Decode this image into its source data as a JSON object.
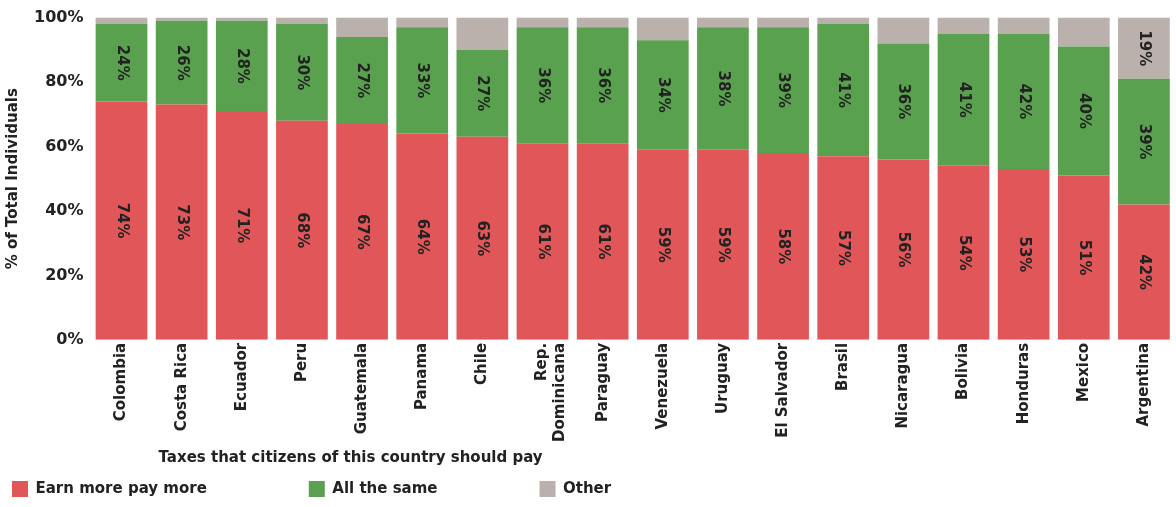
{
  "chart_data": {
    "type": "bar",
    "stacked": true,
    "ylabel": "% of Total Individuals",
    "legend_title": "Taxes that citizens of this country should pay",
    "legend": "bottom left",
    "grid": false,
    "categories": [
      "Colombia",
      "Costa Rica",
      "Ecuador",
      "Peru",
      "Guatemala",
      "Panama",
      "Chile",
      "Rep.\nDominicana",
      "Paraguay",
      "Venezuela",
      "Uruguay",
      "El Salvador",
      "Brasil",
      "Nicaragua",
      "Bolivia",
      "Honduras",
      "Mexico",
      "Argentina"
    ],
    "ylim": [
      0,
      100
    ],
    "yticks": [
      {
        "value": 0,
        "label": "0%"
      },
      {
        "value": 20,
        "label": "20%"
      },
      {
        "value": 40,
        "label": "40%"
      },
      {
        "value": 60,
        "label": "60%"
      },
      {
        "value": 80,
        "label": "80%"
      },
      {
        "value": 100,
        "label": "100%"
      }
    ],
    "series": [
      {
        "name": "Earn more pay more",
        "color": "#e15759",
        "values": [
          74,
          73,
          71,
          68,
          67,
          64,
          63,
          61,
          61,
          59,
          59,
          58,
          57,
          56,
          54,
          53,
          51,
          42
        ],
        "value_labels": [
          "74%",
          "73%",
          "71%",
          "68%",
          "67%",
          "64%",
          "63%",
          "61%",
          "61%",
          "59%",
          "59%",
          "58%",
          "57%",
          "56%",
          "54%",
          "53%",
          "51%",
          "42%"
        ]
      },
      {
        "name": "All the same",
        "color": "#59a14f",
        "values": [
          24,
          26,
          28,
          30,
          27,
          33,
          27,
          36,
          36,
          34,
          38,
          39,
          41,
          36,
          41,
          42,
          40,
          39
        ],
        "value_labels": [
          "24%",
          "26%",
          "28%",
          "30%",
          "27%",
          "33%",
          "27%",
          "36%",
          "36%",
          "34%",
          "38%",
          "39%",
          "41%",
          "36%",
          "41%",
          "42%",
          "40%",
          "39%"
        ]
      },
      {
        "name": "Other",
        "color": "#bab0ac",
        "values": [
          2,
          1,
          1,
          2,
          6,
          3,
          10,
          3,
          3,
          7,
          3,
          3,
          2,
          8,
          5,
          5,
          9,
          19
        ],
        "value_labels": [
          null,
          null,
          null,
          null,
          null,
          null,
          null,
          null,
          null,
          null,
          null,
          null,
          null,
          null,
          null,
          null,
          null,
          "19%"
        ]
      }
    ]
  }
}
